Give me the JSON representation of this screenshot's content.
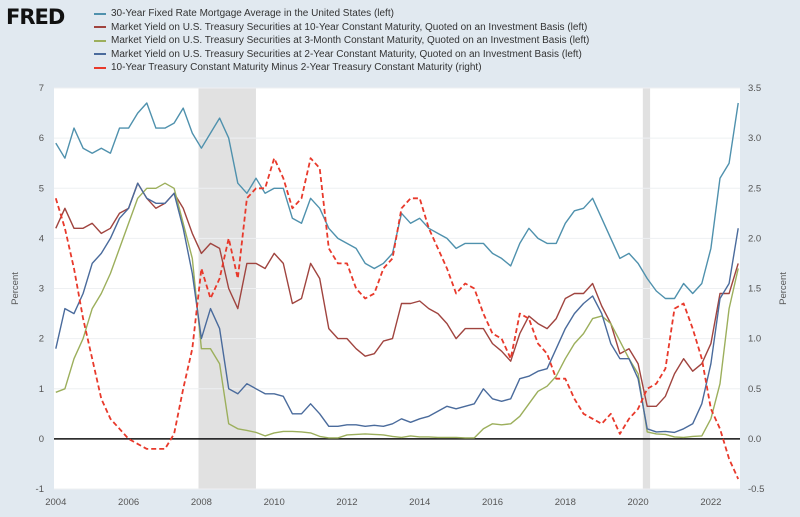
{
  "logo": "FRED",
  "chart_data": {
    "type": "line",
    "x_start": 2004.0,
    "x_step": 0.25,
    "x_ticks": [
      "2004",
      "2006",
      "2008",
      "2010",
      "2012",
      "2014",
      "2016",
      "2018",
      "2020",
      "2022"
    ],
    "left_axis": {
      "label": "Percent",
      "ylim": [
        -1,
        7
      ],
      "ticks": [
        "-1",
        "0",
        "1",
        "2",
        "3",
        "4",
        "5",
        "6",
        "7"
      ]
    },
    "right_axis": {
      "label": "Percent",
      "ylim": [
        -0.5,
        3.5
      ],
      "ticks": [
        "-0.5",
        "0.0",
        "0.5",
        "1.0",
        "1.5",
        "2.0",
        "2.5",
        "3.0",
        "3.5"
      ]
    },
    "grid": true,
    "legend_position": "top",
    "recessions": [
      [
        2007.92,
        2009.5
      ],
      [
        2020.13,
        2020.33
      ]
    ],
    "series": [
      {
        "name": "30-Year Fixed Rate Mortgage Average in the United States (left)",
        "axis": "left",
        "color": "#4f91ad",
        "dash": false,
        "values": [
          5.9,
          5.6,
          6.2,
          5.8,
          5.7,
          5.8,
          5.7,
          6.2,
          6.2,
          6.5,
          6.7,
          6.2,
          6.2,
          6.3,
          6.6,
          6.1,
          5.8,
          6.1,
          6.4,
          6.0,
          5.1,
          4.9,
          5.2,
          4.9,
          5.0,
          5.0,
          4.4,
          4.3,
          4.8,
          4.6,
          4.2,
          4.0,
          3.9,
          3.8,
          3.5,
          3.4,
          3.5,
          3.7,
          4.5,
          4.3,
          4.4,
          4.2,
          4.1,
          4.0,
          3.8,
          3.9,
          3.9,
          3.9,
          3.7,
          3.6,
          3.45,
          3.9,
          4.2,
          4.0,
          3.9,
          3.9,
          4.3,
          4.55,
          4.6,
          4.8,
          4.4,
          4.0,
          3.6,
          3.7,
          3.5,
          3.2,
          2.95,
          2.8,
          2.8,
          3.1,
          2.9,
          3.1,
          3.8,
          5.2,
          5.5,
          6.7
        ]
      },
      {
        "name": "Market Yield on U.S. Treasury Securities at 10-Year Constant Maturity, Quoted on an Investment Basis (left)",
        "axis": "left",
        "color": "#a0443f",
        "dash": false,
        "values": [
          4.2,
          4.6,
          4.2,
          4.2,
          4.3,
          4.1,
          4.2,
          4.5,
          4.6,
          5.1,
          4.8,
          4.6,
          4.7,
          4.9,
          4.6,
          4.1,
          3.7,
          3.9,
          3.8,
          3.0,
          2.6,
          3.5,
          3.5,
          3.4,
          3.7,
          3.5,
          2.7,
          2.8,
          3.5,
          3.2,
          2.2,
          2.0,
          2.0,
          1.8,
          1.65,
          1.7,
          1.95,
          2.0,
          2.7,
          2.7,
          2.75,
          2.6,
          2.5,
          2.3,
          2.0,
          2.2,
          2.2,
          2.2,
          1.9,
          1.75,
          1.55,
          2.1,
          2.45,
          2.3,
          2.2,
          2.4,
          2.8,
          2.9,
          2.9,
          3.1,
          2.65,
          2.3,
          1.7,
          1.8,
          1.5,
          0.65,
          0.65,
          0.85,
          1.3,
          1.6,
          1.35,
          1.5,
          1.9,
          2.9,
          2.9,
          3.5
        ]
      },
      {
        "name": "Market Yield on U.S. Treasury Securities at 3-Month Constant Maturity, Quoted on an Investment Basis (left)",
        "axis": "left",
        "color": "#9caf5c",
        "dash": false,
        "values": [
          0.93,
          1.0,
          1.6,
          2.0,
          2.6,
          2.9,
          3.3,
          3.8,
          4.3,
          4.8,
          5.0,
          5.0,
          5.1,
          5.0,
          4.3,
          3.6,
          1.8,
          1.8,
          1.5,
          0.3,
          0.2,
          0.17,
          0.13,
          0.06,
          0.12,
          0.15,
          0.15,
          0.14,
          0.12,
          0.05,
          0.02,
          0.02,
          0.08,
          0.09,
          0.1,
          0.09,
          0.08,
          0.05,
          0.03,
          0.06,
          0.04,
          0.04,
          0.03,
          0.03,
          0.03,
          0.02,
          0.02,
          0.2,
          0.3,
          0.28,
          0.3,
          0.45,
          0.7,
          0.95,
          1.05,
          1.25,
          1.6,
          1.9,
          2.1,
          2.4,
          2.45,
          2.3,
          1.95,
          1.6,
          1.3,
          0.14,
          0.1,
          0.09,
          0.04,
          0.03,
          0.05,
          0.06,
          0.4,
          1.1,
          2.6,
          3.4
        ]
      },
      {
        "name": "Market Yield on U.S. Treasury Securities at 2-Year Constant Maturity, Quoted on an Investment Basis (left)",
        "axis": "left",
        "color": "#4a6b9c",
        "dash": false,
        "values": [
          1.8,
          2.6,
          2.5,
          2.9,
          3.5,
          3.7,
          4.0,
          4.4,
          4.6,
          5.1,
          4.8,
          4.7,
          4.7,
          4.9,
          4.2,
          3.3,
          2.0,
          2.6,
          2.2,
          1.0,
          0.9,
          1.1,
          1.0,
          0.9,
          0.9,
          0.85,
          0.5,
          0.5,
          0.7,
          0.5,
          0.25,
          0.25,
          0.28,
          0.28,
          0.25,
          0.27,
          0.25,
          0.3,
          0.4,
          0.33,
          0.4,
          0.45,
          0.55,
          0.65,
          0.6,
          0.65,
          0.7,
          1.0,
          0.8,
          0.75,
          0.8,
          1.2,
          1.25,
          1.35,
          1.4,
          1.8,
          2.2,
          2.5,
          2.7,
          2.85,
          2.5,
          1.9,
          1.6,
          1.6,
          1.2,
          0.2,
          0.14,
          0.15,
          0.13,
          0.2,
          0.3,
          0.7,
          1.5,
          2.8,
          3.1,
          4.2
        ]
      },
      {
        "name": "10-Year Treasury Constant Maturity Minus 2-Year Treasury Constant Maturity (right)",
        "axis": "right",
        "color": "#e8392b",
        "dash": true,
        "values": [
          2.4,
          2.1,
          1.7,
          1.2,
          0.8,
          0.4,
          0.2,
          0.1,
          0.0,
          -0.05,
          -0.1,
          -0.1,
          -0.1,
          0.05,
          0.5,
          0.9,
          1.7,
          1.4,
          1.6,
          2.0,
          1.6,
          2.4,
          2.5,
          2.5,
          2.8,
          2.6,
          2.3,
          2.4,
          2.8,
          2.7,
          1.9,
          1.75,
          1.75,
          1.5,
          1.4,
          1.45,
          1.7,
          1.8,
          2.3,
          2.4,
          2.4,
          2.1,
          1.9,
          1.7,
          1.45,
          1.55,
          1.5,
          1.25,
          1.05,
          1.0,
          0.8,
          1.25,
          1.2,
          0.95,
          0.85,
          0.6,
          0.6,
          0.4,
          0.25,
          0.2,
          0.15,
          0.25,
          0.05,
          0.2,
          0.3,
          0.5,
          0.55,
          0.7,
          1.3,
          1.35,
          1.1,
          0.8,
          0.3,
          0.1,
          -0.2,
          -0.4
        ]
      }
    ]
  }
}
